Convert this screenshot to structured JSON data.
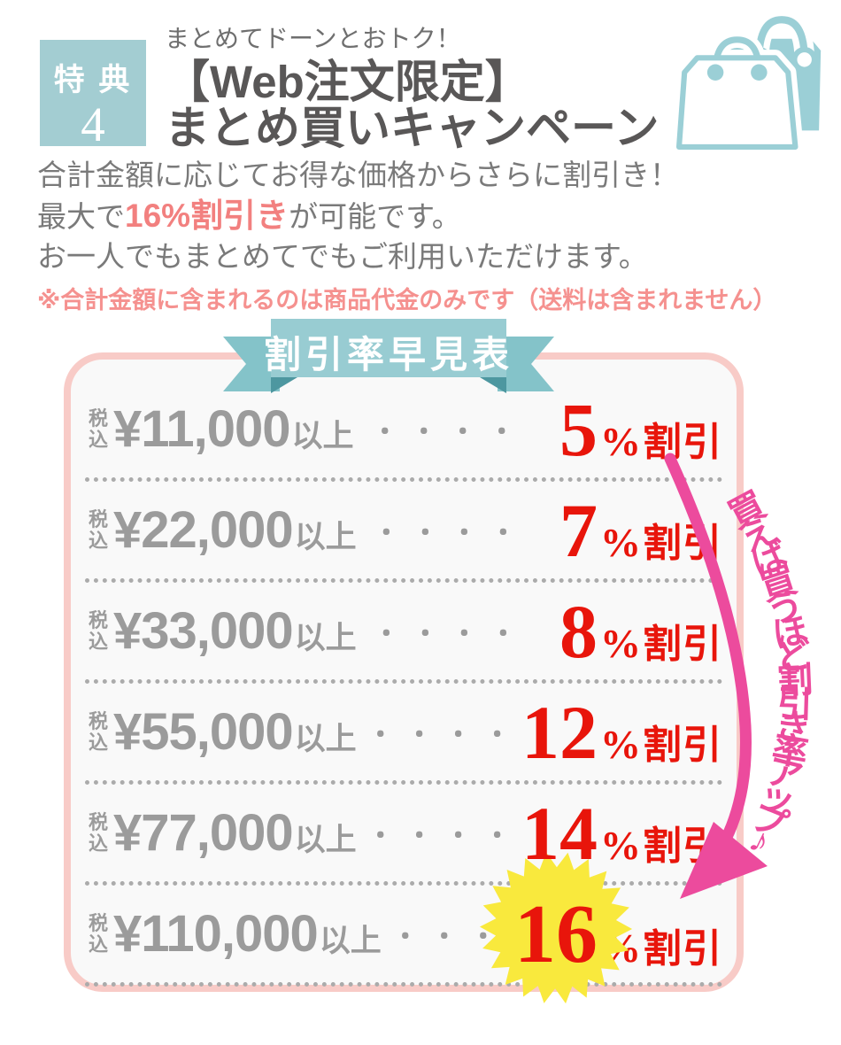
{
  "badge": {
    "label": "特 典",
    "number": "4"
  },
  "header": {
    "tagline": "まとめてドーンとおトク！",
    "title_line1": "【Web注文限定】",
    "title_line2": "まとめ買いキャンペーン"
  },
  "intro": {
    "line1": "合計金額に応じてお得な価格からさらに割引き！",
    "line2_prefix": "最大で",
    "line2_highlight": "16%割引き",
    "line2_suffix": "が可能です。",
    "line3": "お一人でもまとめてでもご利用いただけます。",
    "note": "※合計金額に含まれるのは商品代金のみです（送料は含まれません）"
  },
  "ribbon": {
    "title": "割引率早見表"
  },
  "table": {
    "tax_top": "税",
    "tax_bottom": "込",
    "dots": "・・・・",
    "percent_sign": "%",
    "discount_label": "割引",
    "rows": [
      {
        "amount": "¥11,000",
        "suffix": "以上",
        "percent": "5",
        "starburst": false
      },
      {
        "amount": "¥22,000",
        "suffix": "以上",
        "percent": "7",
        "starburst": false
      },
      {
        "amount": "¥33,000",
        "suffix": "以上",
        "percent": "8",
        "starburst": false
      },
      {
        "amount": "¥55,000",
        "suffix": "以上",
        "percent": "12",
        "starburst": false
      },
      {
        "amount": "¥77,000",
        "suffix": "以上",
        "percent": "14",
        "starburst": false
      },
      {
        "amount": "¥110,000",
        "suffix": "以上",
        "percent": "16",
        "starburst": true
      }
    ]
  },
  "arrow": {
    "caption": "買えば買うほど割引き率アップ♪"
  },
  "palette": {
    "teal": "#a3cdd2",
    "ribbon_teal": "#98ccd2",
    "ribbon_dark": "#4d97a0",
    "title_gray": "#595757",
    "body_gray": "#7a7a7a",
    "row_gray": "#9b9b9b",
    "red": "#e8150b",
    "salmon": "#f2807f",
    "note_pink": "#f5918f",
    "magenta": "#ec4b9d",
    "card_border_pink": "#f8cbc7",
    "card_bg": "#f9f9f9",
    "starburst_yellow": "#f9e93d"
  }
}
